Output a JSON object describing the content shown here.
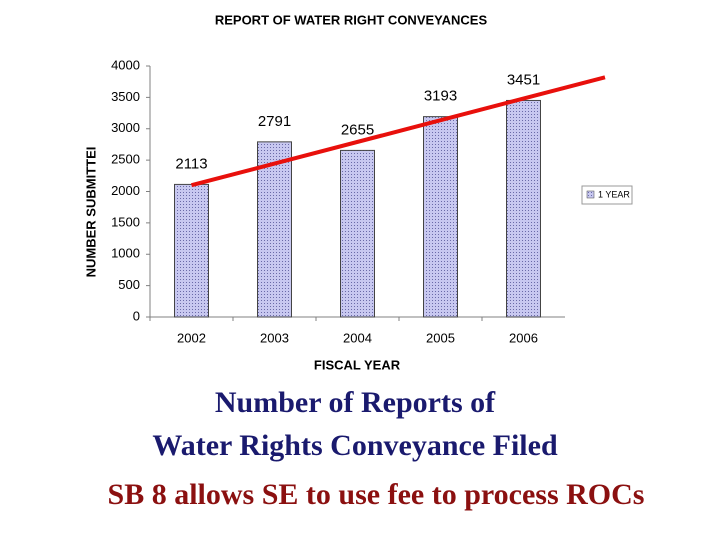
{
  "chart_data": {
    "type": "bar",
    "title": "REPORT OF WATER RIGHT CONVEYANCES",
    "x_label": "FISCAL YEAR",
    "y_label": "NUMBER SUBMITTEI",
    "categories": [
      "2002",
      "2003",
      "2004",
      "2005",
      "2006"
    ],
    "series": [
      {
        "name": "1 YEAR",
        "color": "#b4b4e6",
        "values": [
          2113,
          2791,
          2655,
          3193,
          3451
        ]
      }
    ],
    "ylim": [
      0,
      4000
    ],
    "yticks": [
      0,
      500,
      1000,
      1500,
      2000,
      2500,
      3000,
      3500,
      4000
    ],
    "grid": false,
    "legend": "right",
    "trend_line": {
      "color": "#e8100c",
      "values": [
        2100,
        3820
      ]
    }
  },
  "captions": [
    "Number of Reports of",
    "Water Rights Conveyance Filed",
    "SB 8 allows SE to use fee to process ROCs"
  ]
}
